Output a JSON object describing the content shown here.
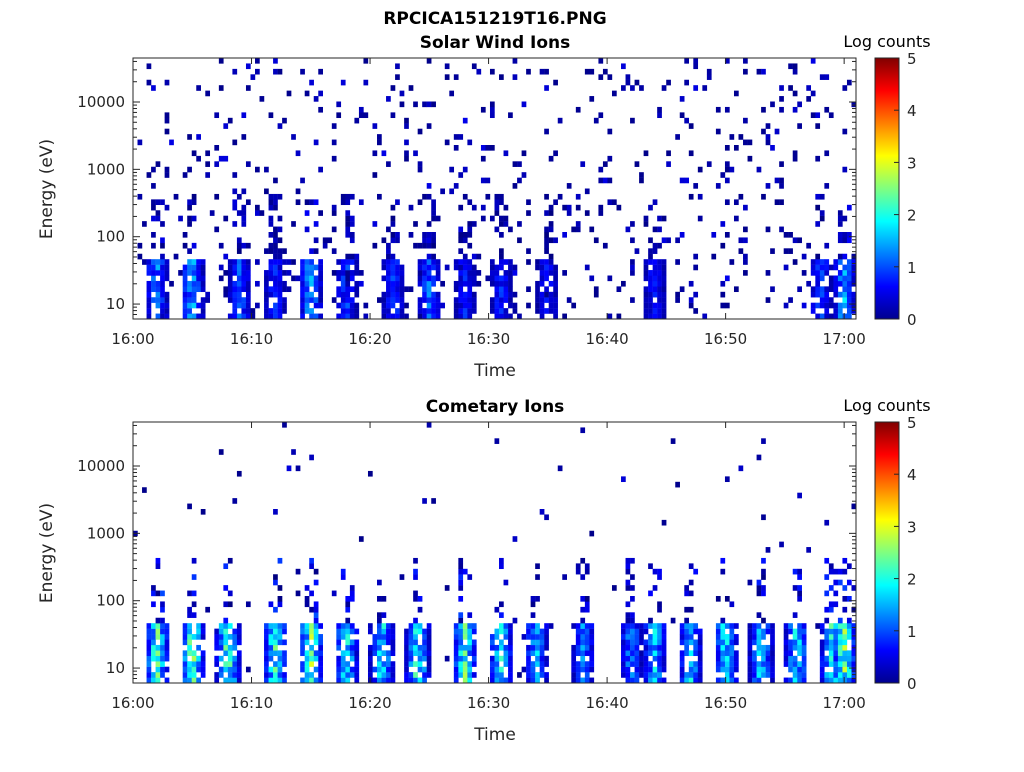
{
  "figure": {
    "title": "RPCICA151219T16.PNG"
  },
  "colormap": "jet",
  "colors": {
    "axis": "#262626",
    "low": "#00008f",
    "high": "#800000"
  },
  "chart_data": [
    {
      "type": "heatmap",
      "title": "Solar Wind Ions",
      "xlabel": "Time",
      "ylabel": "Energy (eV)",
      "xticks": [
        "16:00",
        "16:10",
        "16:20",
        "16:30",
        "16:40",
        "16:50",
        "17:00"
      ],
      "xlim": [
        "16:00",
        "17:01"
      ],
      "yscale": "log",
      "yticks": [
        10,
        100,
        1000,
        10000
      ],
      "ylim": [
        6,
        45000
      ],
      "colorbar": {
        "label": "Log counts",
        "ticks": [
          0,
          1,
          2,
          3,
          4,
          5
        ],
        "range": [
          0,
          5
        ]
      },
      "features": {
        "scatter_density": 0.075,
        "bursts": [
          {
            "time": "16:02",
            "log_counts": 1.6
          },
          {
            "time": "16:05",
            "log_counts": 1.8
          },
          {
            "time": "16:09",
            "log_counts": 1.3
          },
          {
            "time": "16:12",
            "log_counts": 1.0
          },
          {
            "time": "16:15",
            "log_counts": 1.7
          },
          {
            "time": "16:18",
            "log_counts": 1.2
          },
          {
            "time": "16:22",
            "log_counts": 1.1
          },
          {
            "time": "16:25",
            "log_counts": 1.4
          },
          {
            "time": "16:28",
            "log_counts": 0.9
          },
          {
            "time": "16:31",
            "log_counts": 1.0
          },
          {
            "time": "16:35",
            "log_counts": 0.9
          },
          {
            "time": "16:44",
            "log_counts": 0.9
          },
          {
            "time": "16:58",
            "log_counts": 1.2
          },
          {
            "time": "17:00",
            "log_counts": 1.8
          }
        ]
      }
    },
    {
      "type": "heatmap",
      "title": "Cometary Ions",
      "xlabel": "Time",
      "ylabel": "Energy (eV)",
      "xticks": [
        "16:00",
        "16:10",
        "16:20",
        "16:30",
        "16:40",
        "16:50",
        "17:00"
      ],
      "xlim": [
        "16:00",
        "17:01"
      ],
      "yscale": "log",
      "yticks": [
        10,
        100,
        1000,
        10000
      ],
      "ylim": [
        6,
        45000
      ],
      "colorbar": {
        "label": "Log counts",
        "ticks": [
          0,
          1,
          2,
          3,
          4,
          5
        ],
        "range": [
          0,
          5
        ]
      },
      "features": {
        "scatter_density": 0.012,
        "bursts": [
          {
            "time": "16:02",
            "log_counts": 2.8
          },
          {
            "time": "16:05",
            "log_counts": 3.0
          },
          {
            "time": "16:08",
            "log_counts": 3.1
          },
          {
            "time": "16:12",
            "log_counts": 2.6
          },
          {
            "time": "16:15",
            "log_counts": 3.0
          },
          {
            "time": "16:18",
            "log_counts": 2.4
          },
          {
            "time": "16:21",
            "log_counts": 2.3
          },
          {
            "time": "16:24",
            "log_counts": 2.6
          },
          {
            "time": "16:28",
            "log_counts": 2.8
          },
          {
            "time": "16:31",
            "log_counts": 2.4
          },
          {
            "time": "16:34",
            "log_counts": 2.0
          },
          {
            "time": "16:38",
            "log_counts": 1.6
          },
          {
            "time": "16:42",
            "log_counts": 1.6
          },
          {
            "time": "16:44",
            "log_counts": 2.0
          },
          {
            "time": "16:47",
            "log_counts": 2.1
          },
          {
            "time": "16:50",
            "log_counts": 2.3
          },
          {
            "time": "16:53",
            "log_counts": 2.2
          },
          {
            "time": "16:56",
            "log_counts": 2.2
          },
          {
            "time": "16:59",
            "log_counts": 2.6
          },
          {
            "time": "17:00",
            "log_counts": 3.0
          }
        ]
      }
    }
  ]
}
